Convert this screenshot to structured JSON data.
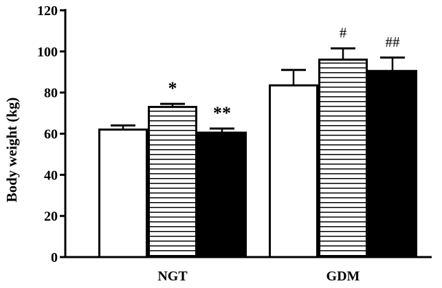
{
  "chart_data": {
    "type": "bar",
    "title": "",
    "xlabel": "",
    "ylabel": "Body weight (kg)",
    "ylim": [
      0,
      120
    ],
    "yticks": [
      0,
      20,
      40,
      60,
      80,
      100,
      120
    ],
    "grid": false,
    "legend": "none",
    "categories": [
      "NGT",
      "GDM"
    ],
    "series": [
      {
        "fill": "open",
        "color": "#ffffff",
        "values": [
          62,
          83.5
        ],
        "errors": [
          2,
          7.5
        ],
        "annotations": [
          "",
          ""
        ]
      },
      {
        "fill": "horizontal-stripes",
        "color": "#ffffff",
        "values": [
          73,
          96
        ],
        "errors": [
          1.5,
          5.5
        ],
        "annotations": [
          "*",
          "#"
        ]
      },
      {
        "fill": "solid",
        "color": "#000000",
        "values": [
          60.5,
          90.5
        ],
        "errors": [
          2,
          6.5
        ],
        "annotations": [
          "**",
          "##"
        ]
      }
    ]
  }
}
